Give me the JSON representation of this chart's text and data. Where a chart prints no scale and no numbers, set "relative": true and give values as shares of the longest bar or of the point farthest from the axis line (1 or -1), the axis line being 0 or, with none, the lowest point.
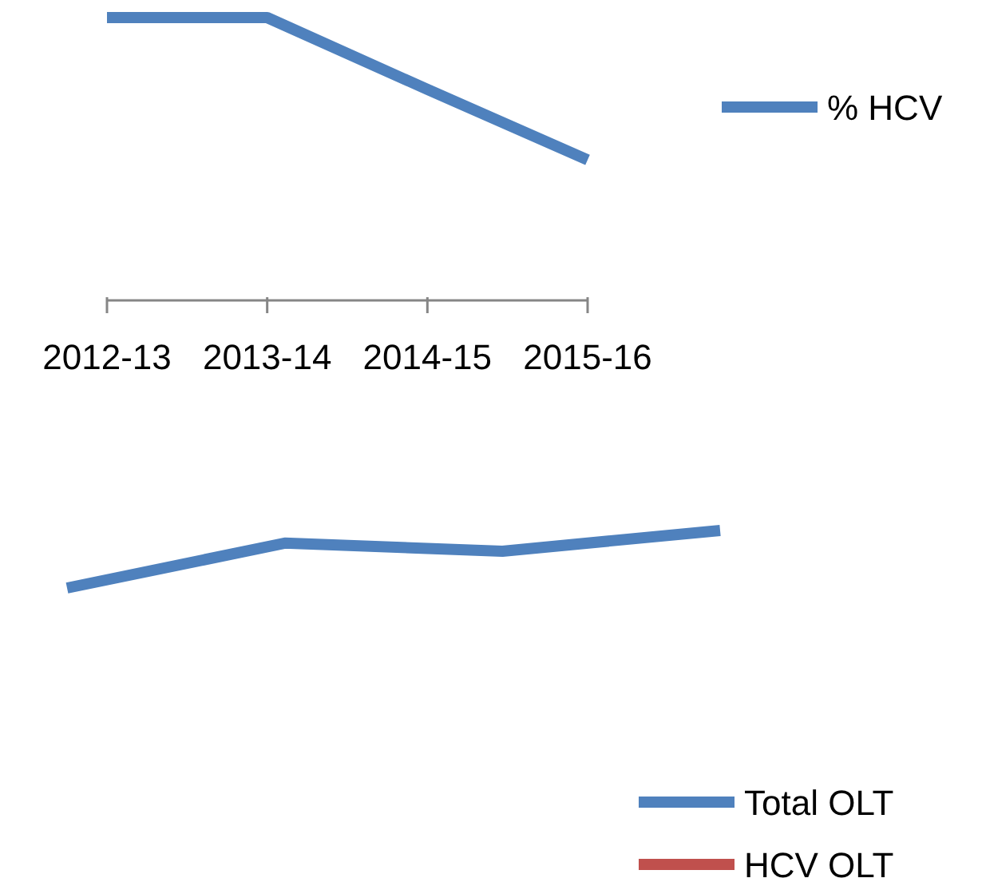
{
  "chart_data": [
    {
      "type": "line",
      "categories": [
        "2012-13",
        "2013-14",
        "2014-15",
        "2015-16"
      ],
      "relative": true,
      "legend": "right",
      "series": [
        {
          "name": "% HCV",
          "color": "#4f81bd",
          "values": [
            1,
            1,
            0.746,
            0.497
          ]
        }
      ]
    },
    {
      "type": "line",
      "categories": [
        null,
        null,
        null,
        null
      ],
      "relative": true,
      "legend": "bottom right",
      "series": [
        {
          "name": "Total OLT",
          "color": "#4f81bd",
          "values": [
            0,
            0.78,
            0.64,
            1
          ]
        },
        {
          "name": "HCV OLT",
          "color": "#c0504d",
          "values": [
            null,
            null,
            null,
            null
          ]
        }
      ]
    }
  ]
}
